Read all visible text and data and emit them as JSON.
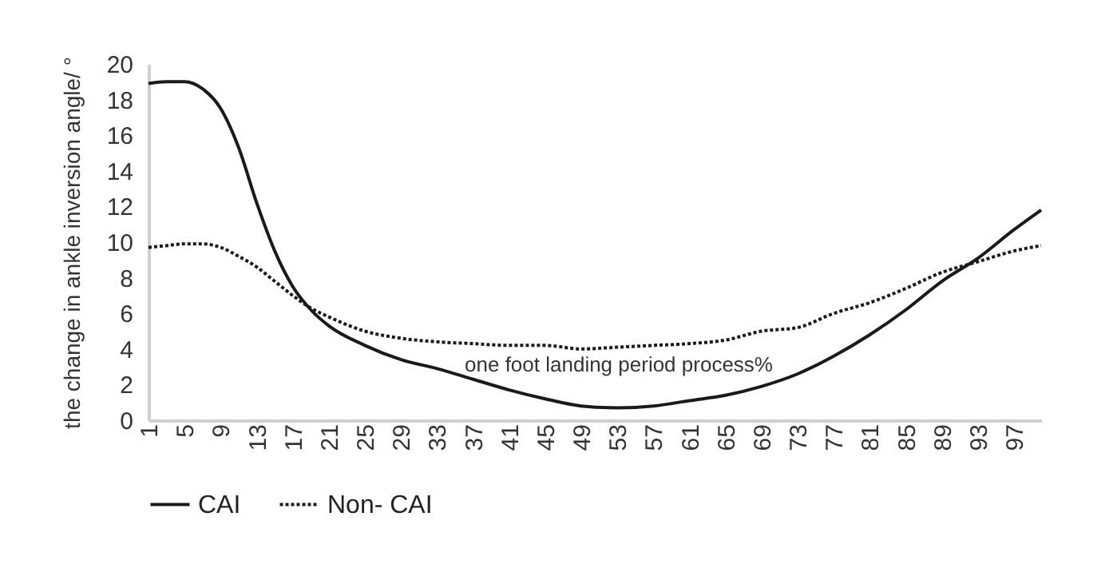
{
  "chart_data": {
    "type": "line",
    "xlabel": "one foot landing period process%",
    "ylabel": "the change in ankle inversion angle/ °",
    "x": [
      1,
      3,
      5,
      7,
      9,
      11,
      13,
      15,
      17,
      19,
      21,
      25,
      29,
      33,
      37,
      41,
      45,
      49,
      53,
      57,
      61,
      65,
      69,
      73,
      77,
      81,
      85,
      89,
      93,
      97,
      100
    ],
    "series": [
      {
        "name": "CAI",
        "color": "#1a1a1a",
        "line_style": "solid",
        "values": [
          18.9,
          19.0,
          19.0,
          18.6,
          17.5,
          15.3,
          12.2,
          9.5,
          7.5,
          6.2,
          5.3,
          4.2,
          3.4,
          2.9,
          2.3,
          1.7,
          1.2,
          0.8,
          0.7,
          0.8,
          1.1,
          1.4,
          1.9,
          2.6,
          3.6,
          4.8,
          6.2,
          7.8,
          9.1,
          10.7,
          11.8
        ]
      },
      {
        "name": "Non- CAI",
        "color": "#1a1a1a",
        "line_style": "dotted",
        "values": [
          9.7,
          9.8,
          9.9,
          9.9,
          9.7,
          9.2,
          8.6,
          7.8,
          7.0,
          6.3,
          5.8,
          5.0,
          4.6,
          4.4,
          4.3,
          4.2,
          4.2,
          4.0,
          4.1,
          4.2,
          4.3,
          4.5,
          5.0,
          5.2,
          6.0,
          6.6,
          7.4,
          8.3,
          8.9,
          9.5,
          9.8
        ]
      }
    ],
    "xlim": [
      1,
      100
    ],
    "xticks": [
      1,
      5,
      9,
      13,
      17,
      21,
      25,
      29,
      33,
      37,
      41,
      45,
      49,
      53,
      57,
      61,
      65,
      69,
      73,
      77,
      81,
      85,
      89,
      93,
      97
    ],
    "ylim": [
      0,
      20
    ],
    "yticks": [
      0,
      2,
      4,
      6,
      8,
      10,
      12,
      14,
      16,
      18,
      20
    ],
    "grid": false,
    "legend": "bottom",
    "marker": "none"
  }
}
